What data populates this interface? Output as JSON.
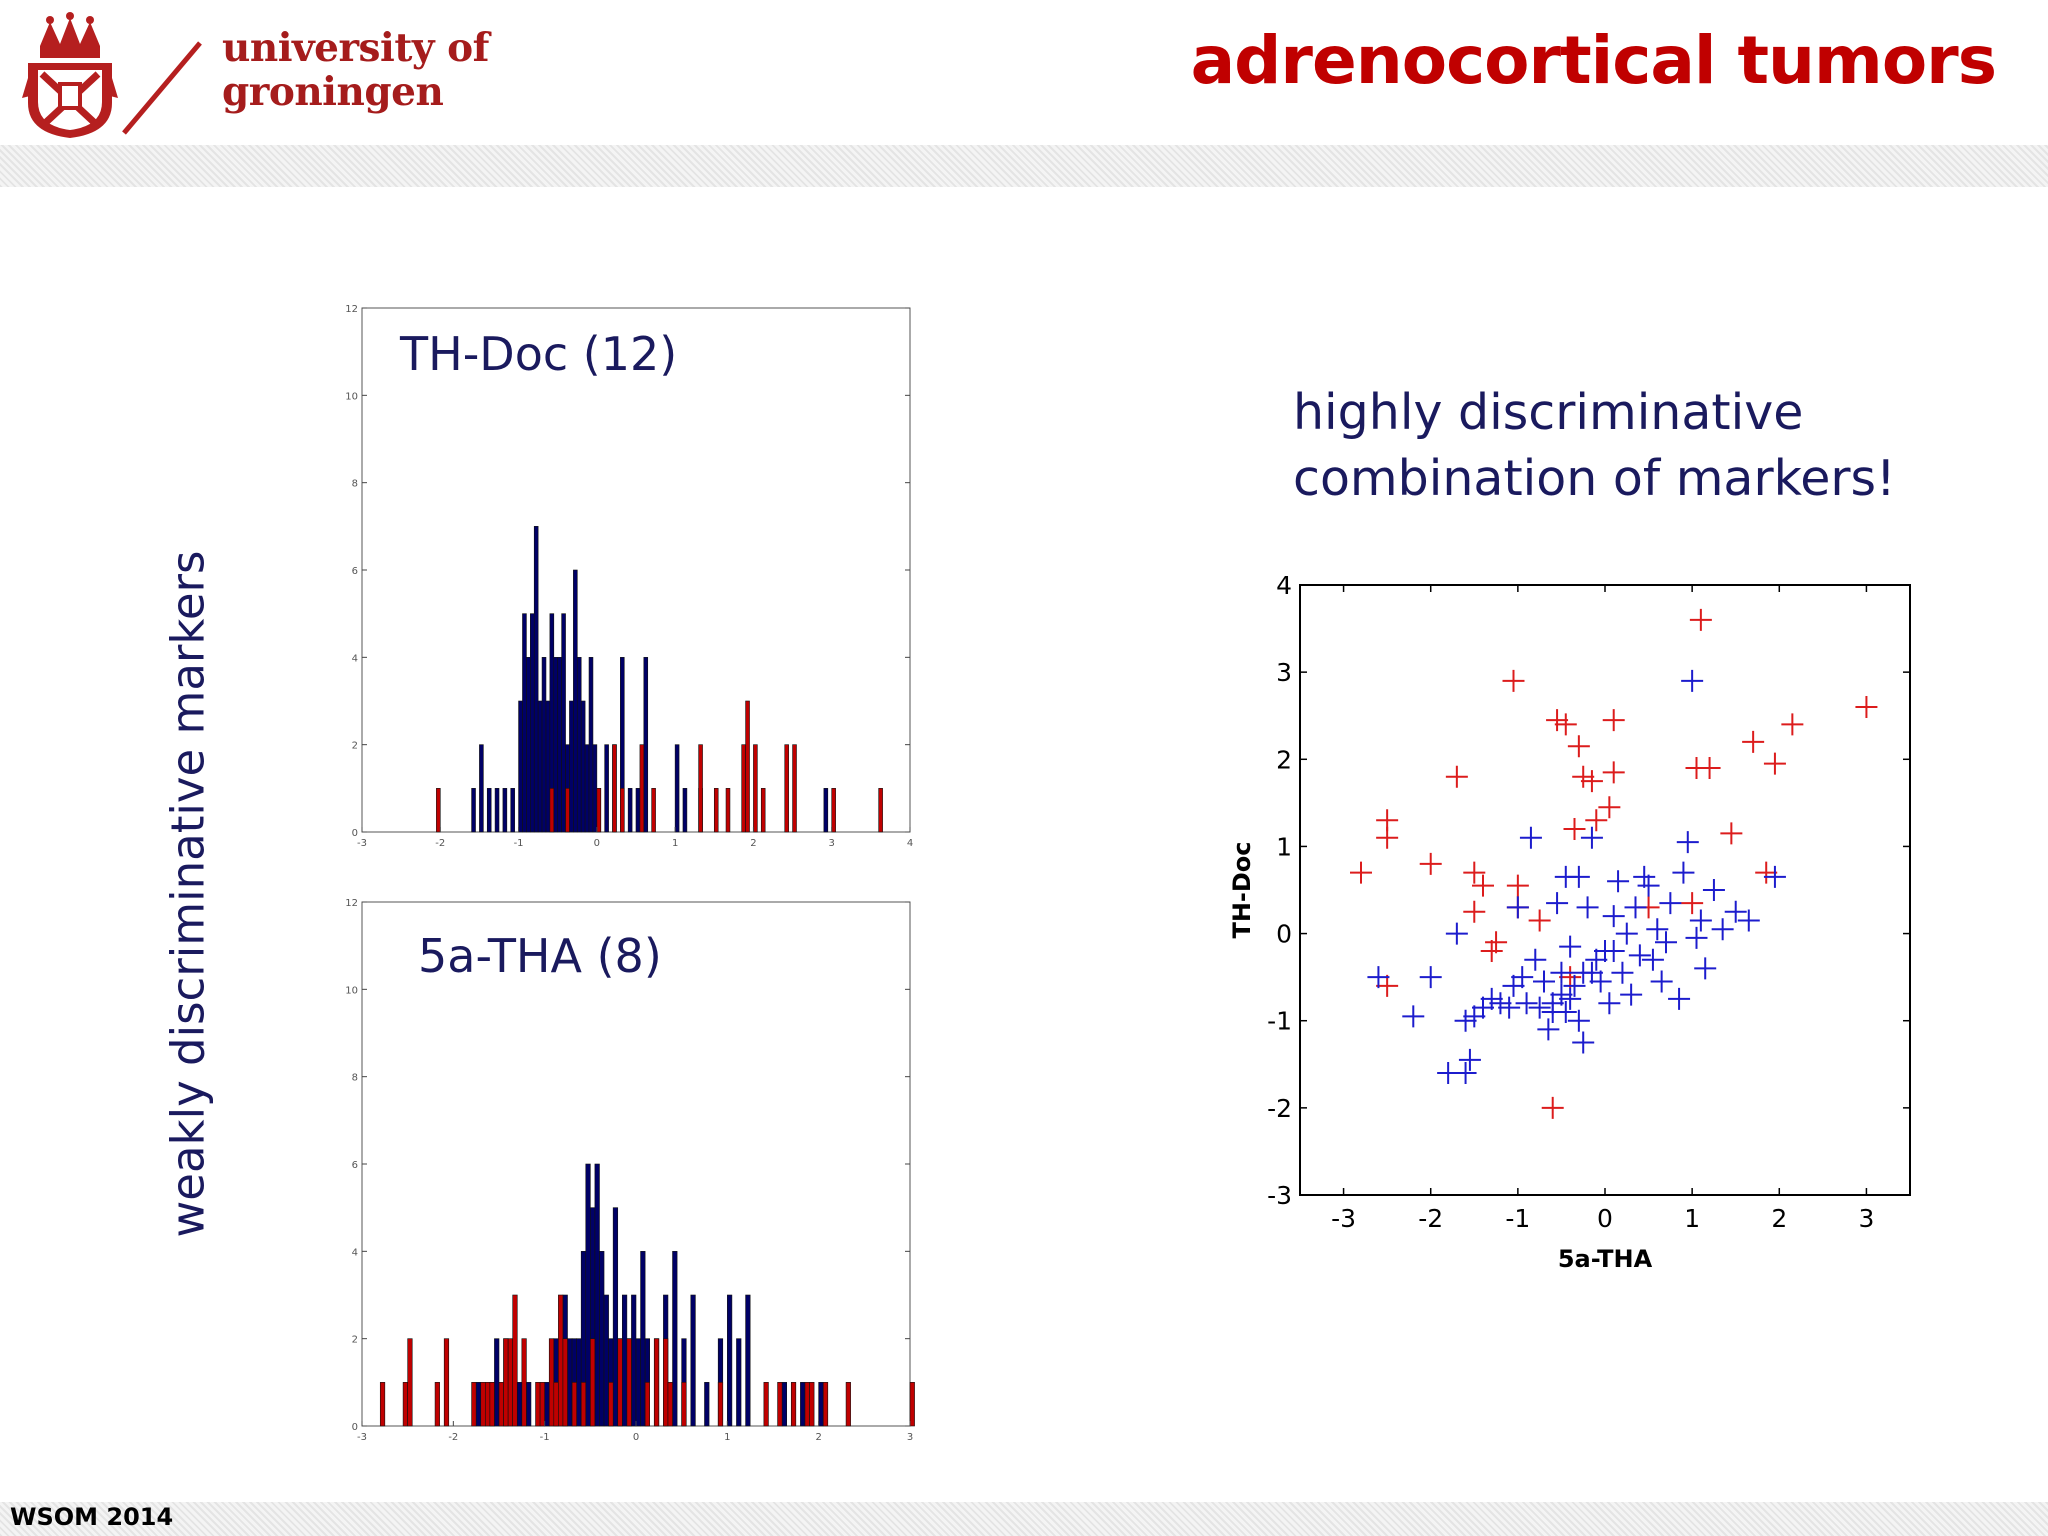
{
  "header": {
    "logo_line1": "university of",
    "logo_line2": "groningen",
    "title": "adrenocortical tumors"
  },
  "footer": {
    "label": "WSOM 2014"
  },
  "side_label": "weakly discriminative markers",
  "highlight": {
    "line1": "highly discriminative",
    "line2": "combination of markers!"
  },
  "colors": {
    "title": "#c00000",
    "logo": "#a51c1c",
    "text_navy": "#1a1a5e",
    "blue_series": "#000066",
    "red_series": "#c00000",
    "scatter_blue": "#1c1ccd",
    "scatter_red": "#dc1c1c"
  },
  "chart_data": [
    {
      "type": "bar",
      "subtype": "histogram",
      "title": "TH-Doc  (12)",
      "xlim": [
        -3,
        4
      ],
      "ylim": [
        0,
        12
      ],
      "xticks": [
        "-3",
        "-2",
        "-1",
        "0",
        "1",
        "2",
        "3",
        "4"
      ],
      "yticks": [
        "0",
        "2",
        "4",
        "6",
        "8",
        "10",
        "12"
      ],
      "series": [
        {
          "color": "#000066",
          "bins": [
            [
              -1.6,
              1
            ],
            [
              -1.5,
              2
            ],
            [
              -1.4,
              1
            ],
            [
              -1.3,
              1
            ],
            [
              -1.2,
              1
            ],
            [
              -1.1,
              1
            ],
            [
              -1.0,
              3
            ],
            [
              -0.95,
              5
            ],
            [
              -0.9,
              4
            ],
            [
              -0.85,
              5
            ],
            [
              -0.8,
              7
            ],
            [
              -0.75,
              3
            ],
            [
              -0.7,
              4
            ],
            [
              -0.65,
              3
            ],
            [
              -0.6,
              5
            ],
            [
              -0.55,
              4
            ],
            [
              -0.5,
              4
            ],
            [
              -0.45,
              5
            ],
            [
              -0.4,
              2
            ],
            [
              -0.35,
              3
            ],
            [
              -0.3,
              6
            ],
            [
              -0.25,
              4
            ],
            [
              -0.2,
              3
            ],
            [
              -0.15,
              2
            ],
            [
              -0.1,
              4
            ],
            [
              -0.05,
              2
            ],
            [
              0.0,
              1
            ],
            [
              0.1,
              2
            ],
            [
              0.2,
              2
            ],
            [
              0.3,
              4
            ],
            [
              0.4,
              1
            ],
            [
              0.5,
              1
            ],
            [
              0.6,
              4
            ],
            [
              1.0,
              2
            ],
            [
              1.1,
              1
            ],
            [
              1.3,
              1
            ],
            [
              2.9,
              1
            ]
          ]
        },
        {
          "color": "#c00000",
          "bins": [
            [
              -2.05,
              1
            ],
            [
              -0.6,
              1
            ],
            [
              -0.4,
              1
            ],
            [
              0.0,
              1
            ],
            [
              0.2,
              2
            ],
            [
              0.3,
              1
            ],
            [
              0.55,
              2
            ],
            [
              0.7,
              1
            ],
            [
              1.3,
              2
            ],
            [
              1.5,
              1
            ],
            [
              1.65,
              1
            ],
            [
              1.85,
              2
            ],
            [
              1.9,
              3
            ],
            [
              2.0,
              2
            ],
            [
              2.1,
              1
            ],
            [
              2.4,
              2
            ],
            [
              2.5,
              2
            ],
            [
              3.0,
              1
            ],
            [
              3.6,
              1
            ]
          ]
        }
      ]
    },
    {
      "type": "bar",
      "subtype": "histogram",
      "title": "5a-THA  (8)",
      "xlim": [
        -3,
        3
      ],
      "ylim": [
        0,
        12
      ],
      "xticks": [
        "-3",
        "-2",
        "-1",
        "0",
        "1",
        "2",
        "3"
      ],
      "yticks": [
        "0",
        "2",
        "4",
        "6",
        "8",
        "10",
        "12"
      ],
      "series": [
        {
          "color": "#000066",
          "bins": [
            [
              -1.75,
              1
            ],
            [
              -1.6,
              1
            ],
            [
              -1.55,
              2
            ],
            [
              -1.45,
              2
            ],
            [
              -1.3,
              1
            ],
            [
              -1.2,
              1
            ],
            [
              -1.0,
              1
            ],
            [
              -0.9,
              2
            ],
            [
              -0.8,
              3
            ],
            [
              -0.75,
              2
            ],
            [
              -0.7,
              2
            ],
            [
              -0.65,
              2
            ],
            [
              -0.6,
              4
            ],
            [
              -0.55,
              6
            ],
            [
              -0.5,
              5
            ],
            [
              -0.45,
              6
            ],
            [
              -0.4,
              4
            ],
            [
              -0.35,
              3
            ],
            [
              -0.3,
              2
            ],
            [
              -0.25,
              5
            ],
            [
              -0.2,
              2
            ],
            [
              -0.15,
              3
            ],
            [
              -0.1,
              2
            ],
            [
              -0.05,
              3
            ],
            [
              0.0,
              2
            ],
            [
              0.05,
              4
            ],
            [
              0.1,
              2
            ],
            [
              0.2,
              2
            ],
            [
              0.3,
              3
            ],
            [
              0.4,
              4
            ],
            [
              0.5,
              2
            ],
            [
              0.6,
              3
            ],
            [
              0.75,
              1
            ],
            [
              0.9,
              2
            ],
            [
              1.0,
              3
            ],
            [
              1.1,
              2
            ],
            [
              1.2,
              3
            ],
            [
              1.6,
              1
            ],
            [
              1.8,
              1
            ],
            [
              2.0,
              1
            ]
          ]
        },
        {
          "color": "#c00000",
          "bins": [
            [
              -2.8,
              1
            ],
            [
              -2.55,
              1
            ],
            [
              -2.5,
              2
            ],
            [
              -2.2,
              1
            ],
            [
              -2.1,
              2
            ],
            [
              -1.8,
              1
            ],
            [
              -1.7,
              1
            ],
            [
              -1.65,
              1
            ],
            [
              -1.6,
              1
            ],
            [
              -1.5,
              1
            ],
            [
              -1.45,
              2
            ],
            [
              -1.4,
              2
            ],
            [
              -1.35,
              3
            ],
            [
              -1.25,
              2
            ],
            [
              -1.1,
              1
            ],
            [
              -1.05,
              1
            ],
            [
              -0.95,
              2
            ],
            [
              -0.9,
              1
            ],
            [
              -0.85,
              3
            ],
            [
              -0.8,
              2
            ],
            [
              -0.7,
              1
            ],
            [
              -0.6,
              1
            ],
            [
              -0.5,
              2
            ],
            [
              -0.3,
              1
            ],
            [
              -0.2,
              2
            ],
            [
              -0.1,
              2
            ],
            [
              0.1,
              1
            ],
            [
              0.2,
              2
            ],
            [
              0.3,
              2
            ],
            [
              0.35,
              1
            ],
            [
              0.5,
              1
            ],
            [
              0.9,
              1
            ],
            [
              1.4,
              1
            ],
            [
              1.55,
              1
            ],
            [
              1.7,
              1
            ],
            [
              1.85,
              1
            ],
            [
              1.9,
              1
            ],
            [
              2.05,
              1
            ],
            [
              2.3,
              1
            ],
            [
              3.0,
              1
            ]
          ]
        }
      ]
    },
    {
      "type": "scatter",
      "xlabel": "5a-THA",
      "ylabel": "TH-Doc",
      "xlim": [
        -3.5,
        3.5
      ],
      "ylim": [
        -3,
        4
      ],
      "xticks": [
        "-3",
        "-2",
        "-1",
        "0",
        "1",
        "2",
        "3"
      ],
      "yticks": [
        "-3",
        "-2",
        "-1",
        "0",
        "1",
        "2",
        "3",
        "4"
      ],
      "series": [
        {
          "color": "#dc1c1c",
          "marker": "+",
          "points": [
            [
              -2.8,
              0.7
            ],
            [
              -2.5,
              1.3
            ],
            [
              -2.5,
              1.1
            ],
            [
              -2.5,
              -0.6
            ],
            [
              -2.0,
              0.8
            ],
            [
              -1.7,
              1.8
            ],
            [
              -1.5,
              0.7
            ],
            [
              -1.5,
              0.25
            ],
            [
              -1.4,
              0.55
            ],
            [
              -1.3,
              -0.2
            ],
            [
              -1.25,
              -0.1
            ],
            [
              -1.05,
              2.9
            ],
            [
              -1.0,
              0.55
            ],
            [
              -1.0,
              0.3
            ],
            [
              -0.75,
              0.15
            ],
            [
              -0.6,
              -2.0
            ],
            [
              -0.55,
              2.45
            ],
            [
              -0.45,
              2.4
            ],
            [
              -0.4,
              -0.5
            ],
            [
              -0.35,
              1.2
            ],
            [
              -0.3,
              2.15
            ],
            [
              -0.25,
              1.8
            ],
            [
              -0.15,
              1.75
            ],
            [
              -0.1,
              1.3
            ],
            [
              0.05,
              1.45
            ],
            [
              0.1,
              1.85
            ],
            [
              0.1,
              2.45
            ],
            [
              0.5,
              0.3
            ],
            [
              1.0,
              0.35
            ],
            [
              1.1,
              3.6
            ],
            [
              1.05,
              1.9
            ],
            [
              1.2,
              1.9
            ],
            [
              1.45,
              1.15
            ],
            [
              1.7,
              2.2
            ],
            [
              1.85,
              0.7
            ],
            [
              1.95,
              1.95
            ],
            [
              2.15,
              2.4
            ],
            [
              3.0,
              2.6
            ]
          ]
        },
        {
          "color": "#1c1ccd",
          "marker": "+",
          "points": [
            [
              -2.6,
              -0.5
            ],
            [
              -2.0,
              -0.5
            ],
            [
              -2.2,
              -0.95
            ],
            [
              -1.8,
              -1.6
            ],
            [
              -1.6,
              -1.6
            ],
            [
              -1.55,
              -1.45
            ],
            [
              -1.6,
              -1.0
            ],
            [
              -1.5,
              -0.95
            ],
            [
              -1.7,
              0.0
            ],
            [
              -1.4,
              -0.85
            ],
            [
              -1.3,
              -0.75
            ],
            [
              -1.2,
              -0.8
            ],
            [
              -1.1,
              -0.85
            ],
            [
              -1.05,
              -0.6
            ],
            [
              -1.0,
              0.3
            ],
            [
              -0.9,
              -0.8
            ],
            [
              -0.85,
              1.1
            ],
            [
              -0.8,
              -0.3
            ],
            [
              -0.75,
              -0.85
            ],
            [
              -0.7,
              -0.55
            ],
            [
              -0.65,
              -1.1
            ],
            [
              -0.6,
              -0.9
            ],
            [
              -0.55,
              0.35
            ],
            [
              -0.5,
              -0.45
            ],
            [
              -0.45,
              -0.9
            ],
            [
              -0.4,
              -0.15
            ],
            [
              -0.35,
              -0.6
            ],
            [
              -0.3,
              0.65
            ],
            [
              -0.3,
              -1.0
            ],
            [
              -0.25,
              -1.25
            ],
            [
              -0.2,
              0.3
            ],
            [
              -0.15,
              1.1
            ],
            [
              -0.1,
              -0.3
            ],
            [
              -0.05,
              -0.55
            ],
            [
              0.0,
              -0.2
            ],
            [
              0.05,
              -0.8
            ],
            [
              0.1,
              0.2
            ],
            [
              0.15,
              0.6
            ],
            [
              0.2,
              -0.45
            ],
            [
              0.25,
              0.0
            ],
            [
              0.3,
              -0.7
            ],
            [
              0.35,
              0.3
            ],
            [
              0.4,
              -0.25
            ],
            [
              0.5,
              0.55
            ],
            [
              0.55,
              -0.3
            ],
            [
              0.6,
              0.05
            ],
            [
              0.65,
              -0.55
            ],
            [
              0.7,
              -0.1
            ],
            [
              0.75,
              0.35
            ],
            [
              0.85,
              -0.75
            ],
            [
              0.9,
              0.7
            ],
            [
              0.95,
              1.05
            ],
            [
              1.0,
              2.9
            ],
            [
              1.05,
              -0.05
            ],
            [
              1.1,
              0.15
            ],
            [
              1.15,
              -0.4
            ],
            [
              1.25,
              0.5
            ],
            [
              1.35,
              0.05
            ],
            [
              1.5,
              0.25
            ],
            [
              1.65,
              0.15
            ],
            [
              1.95,
              0.65
            ],
            [
              -0.45,
              0.65
            ],
            [
              -0.15,
              -0.45
            ],
            [
              0.1,
              -0.2
            ],
            [
              -0.95,
              -0.5
            ],
            [
              -0.25,
              -0.45
            ],
            [
              0.45,
              0.65
            ],
            [
              -0.6,
              -0.8
            ],
            [
              -0.5,
              -0.7
            ],
            [
              -0.4,
              -0.75
            ]
          ]
        }
      ]
    }
  ]
}
